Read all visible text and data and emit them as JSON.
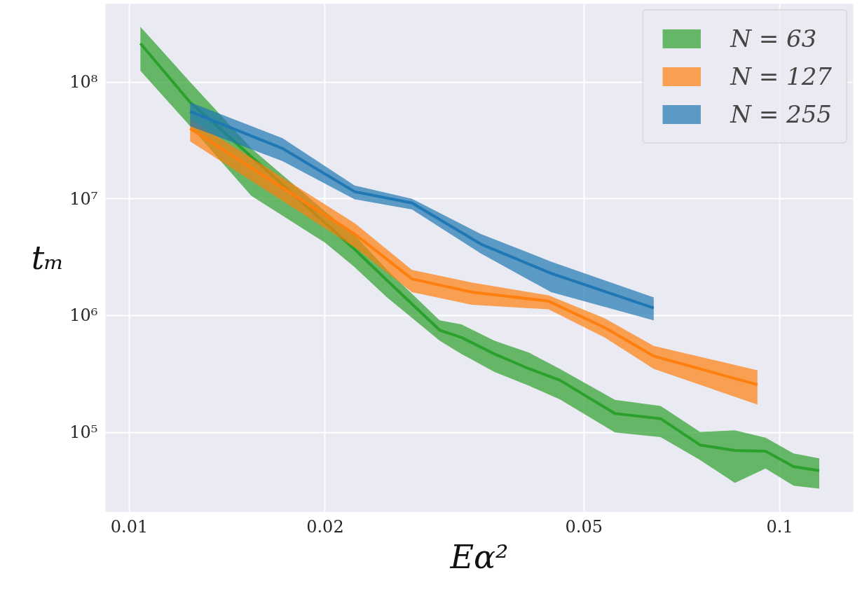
{
  "chart_data": {
    "type": "line",
    "xlabel": "Eα²",
    "ylabel": "tₘ",
    "log": "xy",
    "grid": true,
    "legend": "top right",
    "xlim": [
      0.00919,
      0.1297
    ],
    "ylim": [
      20900,
      467000000
    ],
    "xticks": [
      0.01,
      0.02,
      0.05,
      0.1
    ],
    "yticks": [
      {
        "value": 100000,
        "label": "10⁵"
      },
      {
        "value": 1000000,
        "label": "10⁶"
      },
      {
        "value": 10000000,
        "label": "10⁷"
      },
      {
        "value": 100000000,
        "label": "10⁸"
      }
    ],
    "series": [
      {
        "name": "N = 63",
        "color": "#2ca02c",
        "x": [
          0.0104,
          0.0124,
          0.0154,
          0.02,
          0.0222,
          0.0249,
          0.03,
          0.0324,
          0.0364,
          0.0412,
          0.0459,
          0.0558,
          0.0656,
          0.0754,
          0.0853,
          0.0951,
          0.105,
          0.115
        ],
        "values": [
          214000000,
          67000000,
          23000000,
          6200000,
          3700000,
          2000000,
          750000,
          650000,
          470000,
          350000,
          280000,
          145000,
          131000,
          78000,
          70000,
          69000,
          51000,
          47000
        ],
        "lower": [
          125000000,
          42000000,
          10600000,
          4200000,
          2600000,
          1430000,
          610000,
          470000,
          330000,
          250000,
          192000,
          100000,
          91000,
          58000,
          37000,
          49000,
          35000,
          33000
        ],
        "upper": [
          297000000,
          100000000,
          27000000,
          7800000,
          4900000,
          2460000,
          910000,
          840000,
          610000,
          480000,
          350000,
          190000,
          168000,
          101000,
          104000,
          90000,
          66000,
          60000
        ]
      },
      {
        "name": "N = 127",
        "color": "#ff7f0e",
        "x": [
          0.0124,
          0.0222,
          0.0272,
          0.0336,
          0.0441,
          0.0538,
          0.064,
          0.0924
        ],
        "values": [
          40000000,
          5000000,
          2060000,
          1590000,
          1330000,
          790000,
          450000,
          256000
        ],
        "lower": [
          31000000,
          3850000,
          1590000,
          1240000,
          1130000,
          650000,
          350000,
          173000
        ],
        "upper": [
          48000000,
          6200000,
          2460000,
          1920000,
          1490000,
          950000,
          550000,
          340000
        ]
      },
      {
        "name": "N = 255",
        "color": "#1f77b4",
        "x": [
          0.0124,
          0.0172,
          0.0222,
          0.0272,
          0.0347,
          0.0445,
          0.064
        ],
        "values": [
          56000000,
          27000000,
          11500000,
          9200000,
          4100000,
          2300000,
          1160000
        ],
        "lower": [
          42000000,
          21000000,
          9900000,
          8100000,
          3400000,
          1590000,
          910000
        ],
        "upper": [
          67000000,
          33000000,
          13000000,
          10000000,
          5000000,
          2900000,
          1430000
        ]
      }
    ]
  }
}
